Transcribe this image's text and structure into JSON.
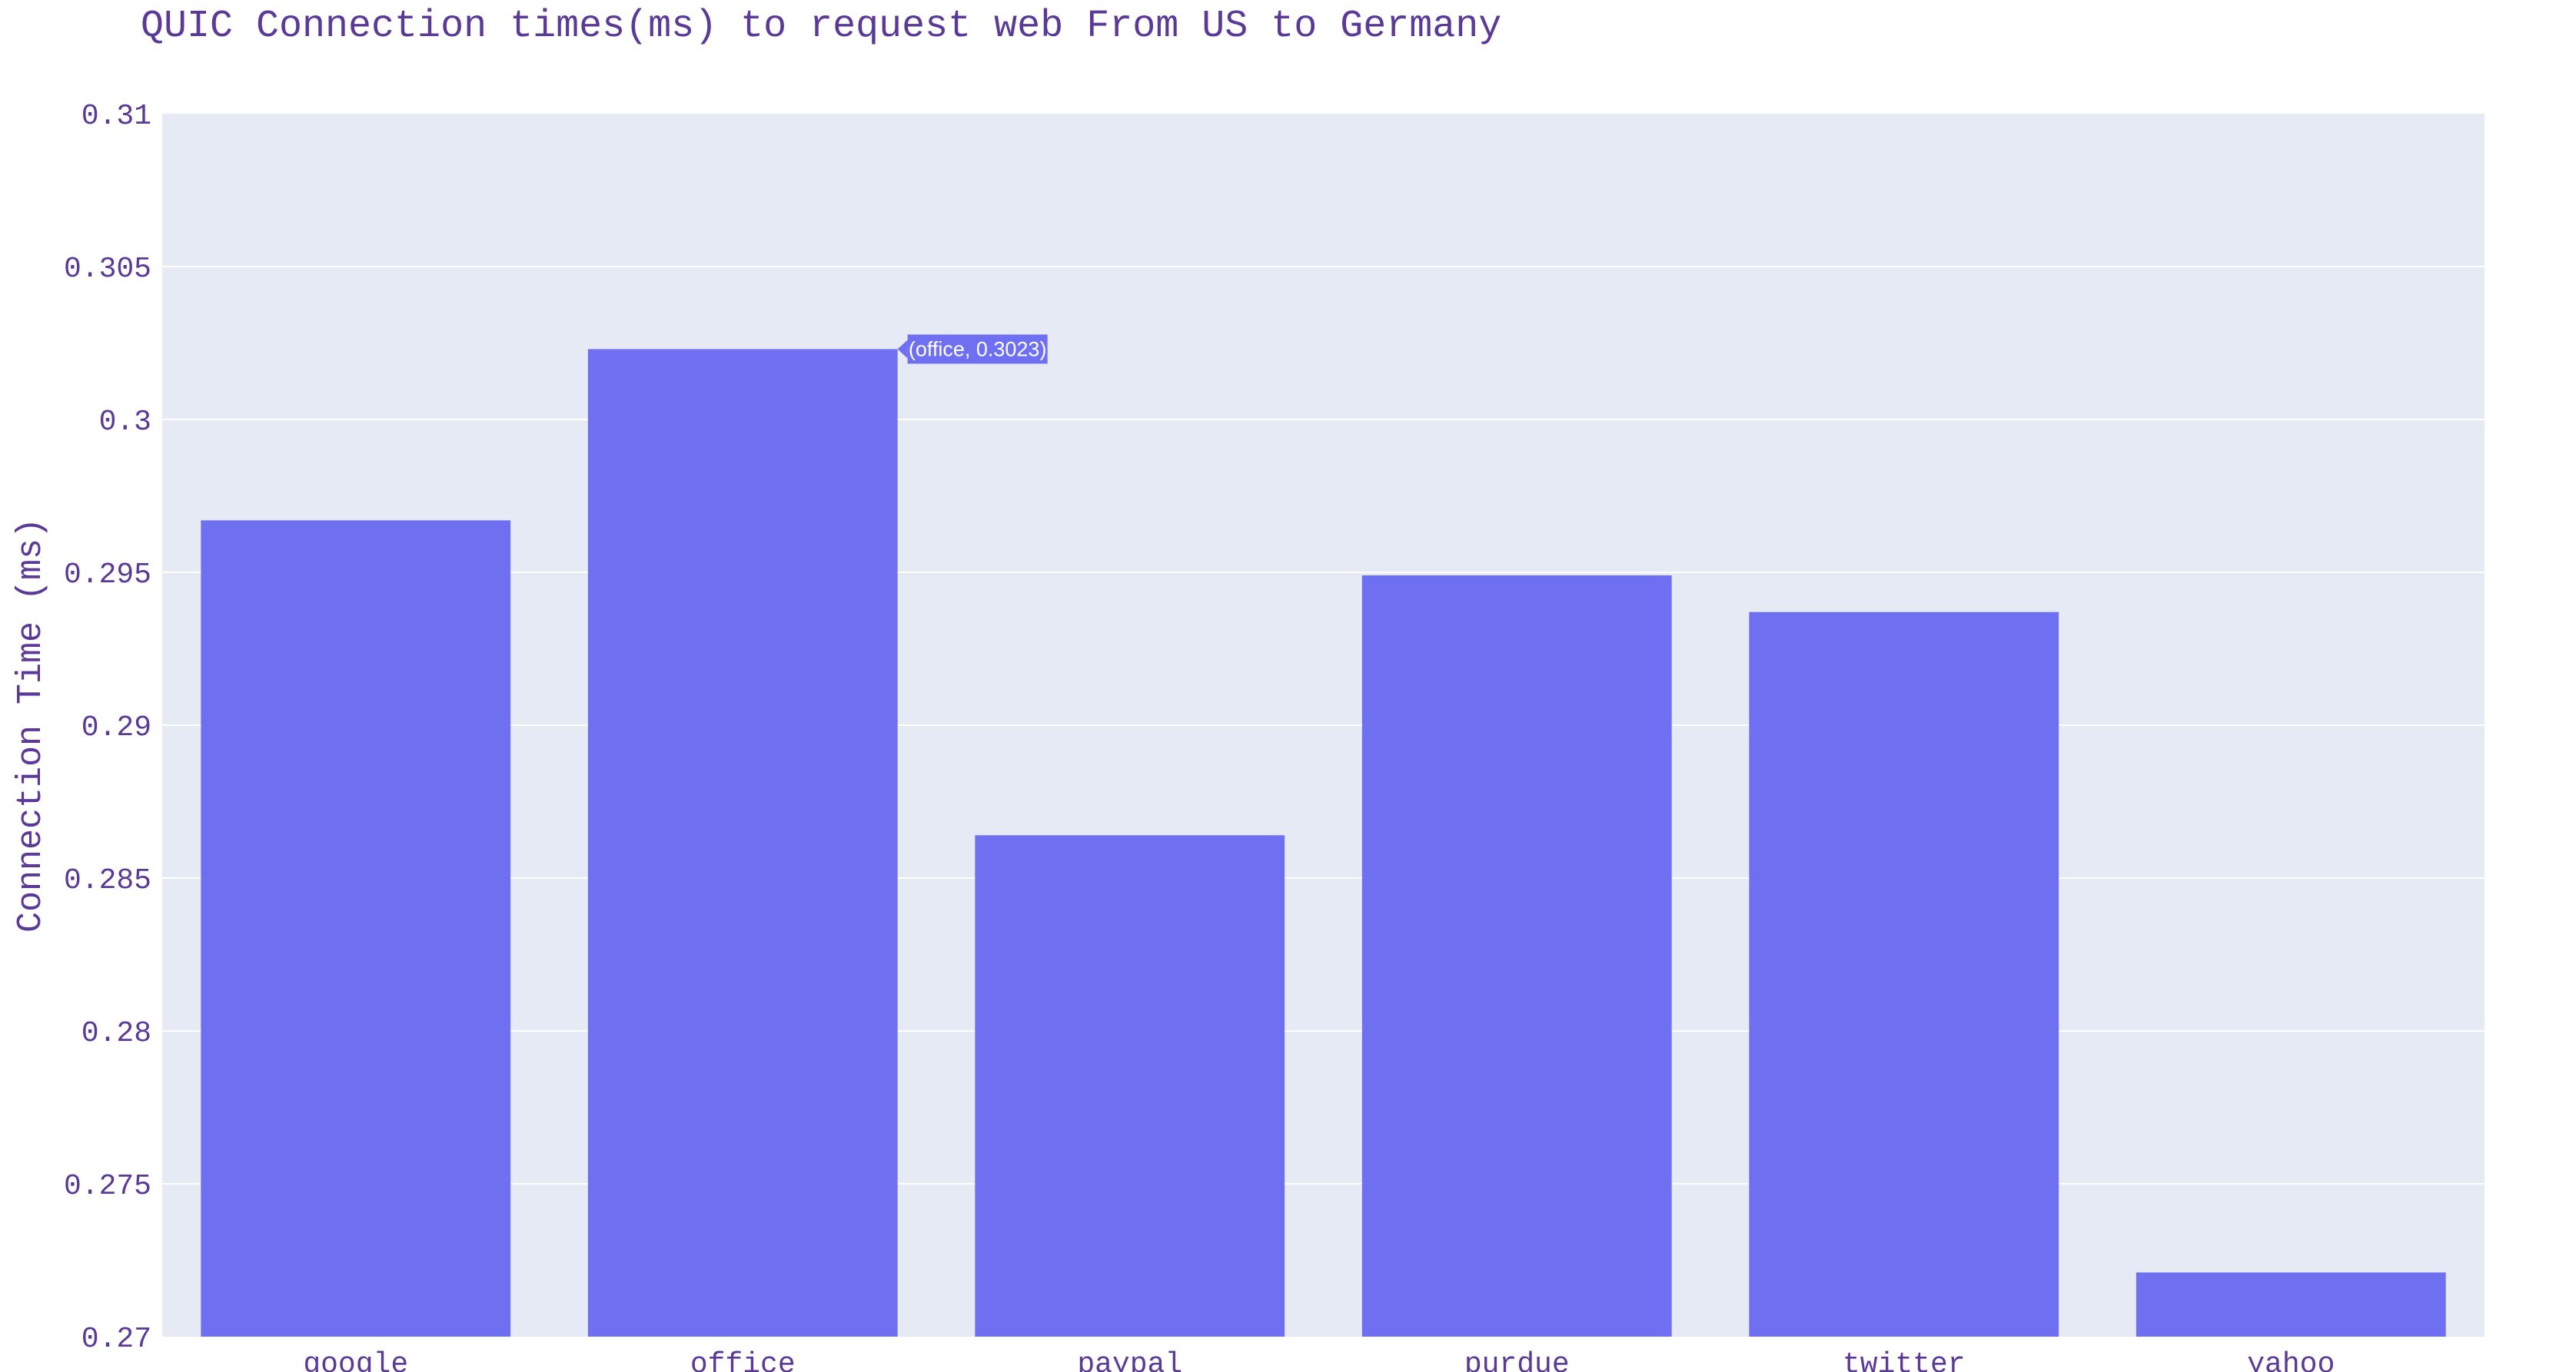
{
  "chart_data": {
    "type": "bar",
    "title": "QUIC Connection times(ms) to request web From US to Germany",
    "xlabel": "",
    "ylabel": "Connection Time (ms)",
    "categories": [
      "google",
      "office",
      "paypal",
      "purdue",
      "twitter",
      "yahoo"
    ],
    "values": [
      0.2967,
      0.3023,
      0.2864,
      0.2949,
      0.2937,
      0.2721
    ],
    "ylim": [
      0.27,
      0.31
    ],
    "yticks": [
      0.27,
      0.275,
      0.28,
      0.285,
      0.29,
      0.295,
      0.3,
      0.305,
      0.31
    ],
    "ytick_labels": [
      "0.27",
      "0.275",
      "0.28",
      "0.285",
      "0.29",
      "0.295",
      "0.3",
      "0.305",
      "0.31"
    ],
    "grid": true,
    "colors": {
      "bar": "#6e70f1",
      "plot_background": "#e6eaf4",
      "gridline": "#ffffff",
      "text": "#5a3a96"
    },
    "hover_label": {
      "text": "(office, 0.3023)",
      "category": "office",
      "value": 0.3023
    }
  }
}
